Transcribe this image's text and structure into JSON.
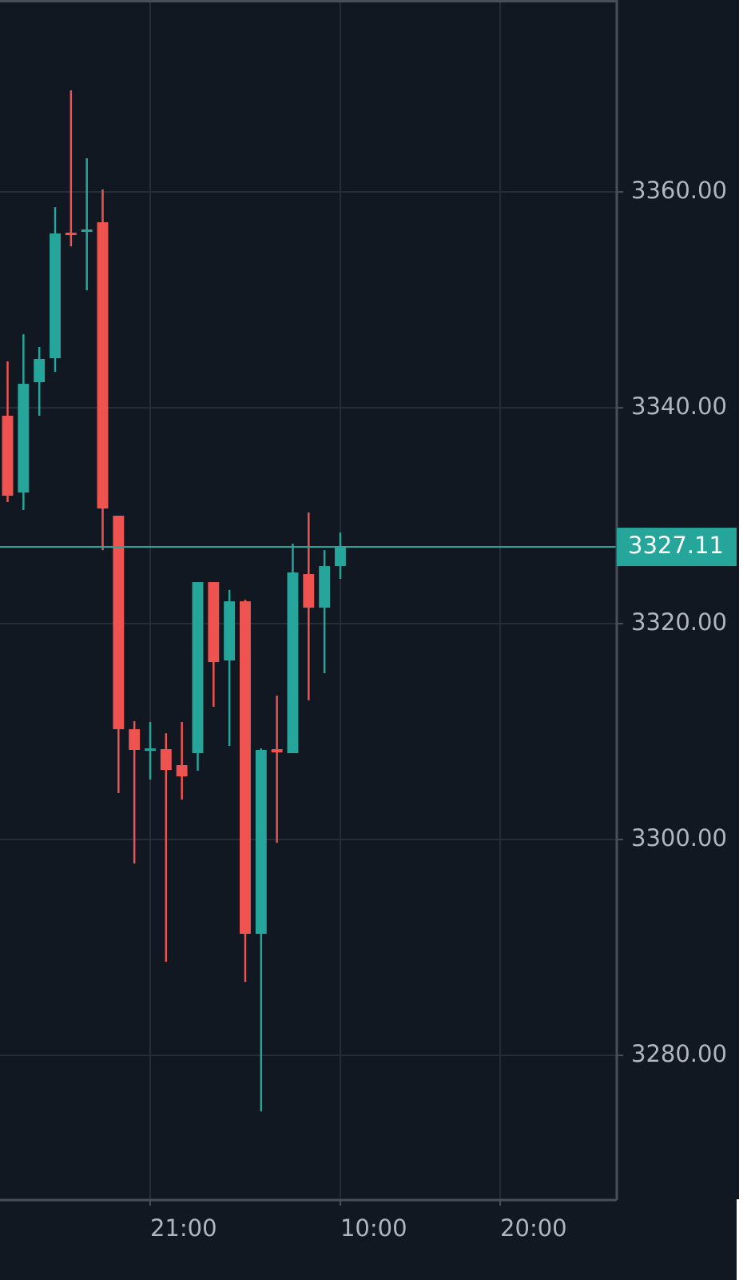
{
  "chart_data": {
    "type": "candlestick",
    "open": [
      3339.26,
      3332.15,
      3342.37,
      3344.59,
      3356.22,
      3356.37,
      3357.19,
      3330.0,
      3310.22,
      3308.3,
      3308.37,
      3306.89,
      3308.0,
      3323.85,
      3316.59,
      3322.07,
      3291.26,
      3308.37,
      3308.0,
      3324.59,
      3321.48,
      3325.33
    ],
    "high": [
      3344.3,
      3346.81,
      3345.63,
      3358.59,
      3369.41,
      3363.11,
      3360.22,
      3330.0,
      3310.96,
      3310.89,
      3309.85,
      3310.89,
      3323.85,
      3323.85,
      3323.11,
      3322.22,
      3308.44,
      3313.33,
      3327.41,
      3330.3,
      3326.81,
      3328.44
    ],
    "low": [
      3331.26,
      3330.52,
      3339.26,
      3343.33,
      3354.96,
      3350.89,
      3326.81,
      3304.3,
      3297.78,
      3305.56,
      3288.67,
      3303.7,
      3306.37,
      3312.3,
      3308.67,
      3286.81,
      3274.81,
      3299.7,
      3308.0,
      3312.89,
      3315.41,
      3324.15
    ],
    "close": [
      3331.85,
      3342.22,
      3344.52,
      3356.15,
      3356.07,
      3356.52,
      3330.67,
      3310.22,
      3308.3,
      3308.44,
      3306.44,
      3305.85,
      3323.85,
      3316.44,
      3322.07,
      3291.26,
      3308.3,
      3308.07,
      3324.74,
      3321.48,
      3325.33,
      3327.11
    ],
    "up_color": "#26a69a",
    "down_color": "#ef5350",
    "last_price": 3327.11,
    "last_price_color": "#26a69a",
    "ylim": [
      3266.67,
      3377.78
    ],
    "yticks": [
      {
        "value": 3280,
        "label": "3280.00"
      },
      {
        "value": 3300,
        "label": "3300.00"
      },
      {
        "value": 3320,
        "label": "3320.00"
      },
      {
        "value": 3340,
        "label": "3340.00"
      },
      {
        "value": 3360,
        "label": "3360.00"
      }
    ],
    "xlim": [
      -0.48,
      38.45
    ],
    "xticks": [
      {
        "value": 9,
        "label": "21:00"
      },
      {
        "value": 21,
        "label": "10:00"
      },
      {
        "value": 31.09,
        "label": "20:00"
      }
    ],
    "grid": true
  }
}
